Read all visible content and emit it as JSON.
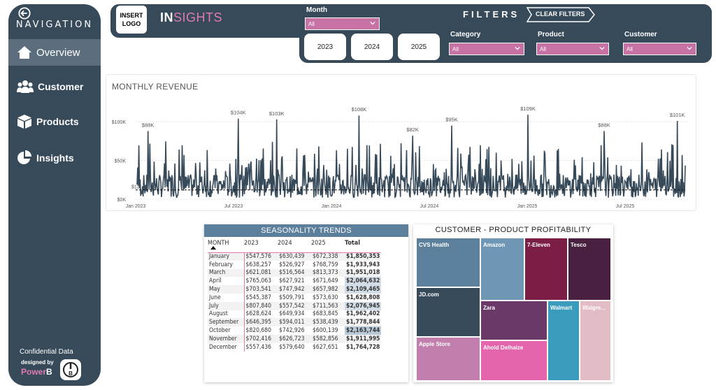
{
  "sidebar": {
    "title": "NAVIGATION",
    "items": [
      {
        "label": "Overview",
        "icon": "home-icon",
        "active": true
      },
      {
        "label": "Customer",
        "icon": "users-icon"
      },
      {
        "label": "Products",
        "icon": "box-icon"
      },
      {
        "label": "Insights",
        "icon": "pie-icon"
      }
    ],
    "footer": {
      "confidential": "Confidential Data",
      "designed_by": "designed by",
      "brand_a": "Power",
      "brand_b": "B"
    }
  },
  "header": {
    "logo_line1": "INSERT",
    "logo_line2": "LOGO",
    "title_a": "IN",
    "title_b": "SIGHTS",
    "filters_title": "FILTERS",
    "clear_filters": "CLEAR FILTERS"
  },
  "filters": {
    "month": {
      "label": "Month",
      "value": "All"
    },
    "category": {
      "label": "Category",
      "value": "All"
    },
    "product": {
      "label": "Product",
      "value": "All"
    },
    "customer": {
      "label": "Customer",
      "value": "All"
    },
    "years": [
      "2023",
      "2024",
      "2025"
    ]
  },
  "colors": {
    "navy": "#374a5a",
    "pink": "#c772a4",
    "accent": "#e07bb0"
  },
  "chart_data": {
    "type": "line",
    "title": "MONTHLY REVENUE",
    "x_ticks": [
      "Jan 2023",
      "Jul 2023",
      "Jan 2024",
      "Jul 2024",
      "Jan 2025",
      "Jul 2025"
    ],
    "y_ticks": [
      "$0K",
      "$50K",
      "$100K"
    ],
    "ylim": [
      0,
      110000
    ],
    "average_label": "$12",
    "average_value": 12000,
    "peak_labels": [
      {
        "text": "$88K",
        "x": 0.02,
        "value": 88000
      },
      {
        "text": "$104K",
        "x": 0.185,
        "value": 104000
      },
      {
        "text": "$103K",
        "x": 0.255,
        "value": 103000
      },
      {
        "text": "$108K",
        "x": 0.405,
        "value": 108000
      },
      {
        "text": "$82K",
        "x": 0.503,
        "value": 82000
      },
      {
        "text": "$95K",
        "x": 0.574,
        "value": 95000
      },
      {
        "text": "$109K",
        "x": 0.713,
        "value": 109000
      },
      {
        "text": "$88K",
        "x": 0.852,
        "value": 88000
      },
      {
        "text": "$101K",
        "x": 0.985,
        "value": 101000
      }
    ]
  },
  "seasonality": {
    "title": "SEASONALITY TRENDS",
    "columns": [
      "MONTH",
      "2023",
      "2024",
      "2025",
      "Total"
    ],
    "rows": [
      [
        "January",
        "$547,576",
        "$630,439",
        "$672,338",
        "$1,850,353"
      ],
      [
        "February",
        "$638,257",
        "$526,927",
        "$768,759",
        "$1,933,943"
      ],
      [
        "March",
        "$621,081",
        "$516,564",
        "$813,373",
        "$1,951,018"
      ],
      [
        "April",
        "$765,063",
        "$627,921",
        "$671,649",
        "$2,064,632"
      ],
      [
        "May",
        "$703,541",
        "$747,942",
        "$657,982",
        "$2,109,465"
      ],
      [
        "June",
        "$545,387",
        "$509,791",
        "$573,630",
        "$1,628,808"
      ],
      [
        "July",
        "$807,840",
        "$557,542",
        "$711,563",
        "$2,076,945"
      ],
      [
        "August",
        "$628,624",
        "$649,934",
        "$683,845",
        "$1,962,402"
      ],
      [
        "September",
        "$646,395",
        "$594,011",
        "$538,439",
        "$1,778,844"
      ],
      [
        "October",
        "$820,680",
        "$742,926",
        "$600,139",
        "$2,163,744"
      ],
      [
        "November",
        "$702,416",
        "$626,723",
        "$582,856",
        "$1,911,995"
      ],
      [
        "December",
        "$557,436",
        "$579,640",
        "$627,651",
        "$1,764,728"
      ]
    ]
  },
  "treemap": {
    "title": "CUSTOMER - PRODUCT PROFITABILITY",
    "tiles": [
      {
        "label": "CVS Health",
        "color": "#5c7f9c"
      },
      {
        "label": "JD.com",
        "color": "#374a5a"
      },
      {
        "label": "Apple Store",
        "color": "#c27fae"
      },
      {
        "label": "Amazon",
        "color": "#6f96b5"
      },
      {
        "label": "Zara",
        "color": "#6b3968"
      },
      {
        "label": "Ahold Delhaize",
        "color": "#e565ad"
      },
      {
        "label": "7-Eleven",
        "color": "#7c1d45"
      },
      {
        "label": "Tesco",
        "color": "#4a2040"
      },
      {
        "label": "Walmart",
        "color": "#3a9bbd"
      },
      {
        "label": "Walgre...",
        "color": "#e2bcc4"
      }
    ]
  }
}
